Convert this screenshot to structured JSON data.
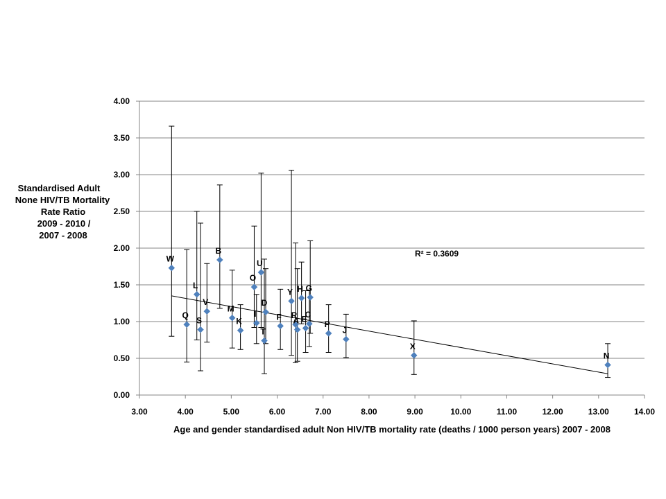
{
  "chart_data": {
    "type": "scatter",
    "title": "",
    "xlabel": "Age and gender standardised adult Non HIV/TB mortality rate  (deaths / 1000 person years)  2007 - 2008",
    "ylabel_lines": [
      "Standardised  Adult",
      "None HIV/TB Mortality",
      "Rate Ratio",
      "2009 - 2010 /",
      "2007 - 2008"
    ],
    "xlim": [
      3.0,
      14.0
    ],
    "ylim": [
      0.0,
      4.0
    ],
    "x_ticks": [
      "3.00",
      "4.00",
      "5.00",
      "6.00",
      "7.00",
      "8.00",
      "9.00",
      "10.00",
      "11.00",
      "12.00",
      "13.00",
      "14.00"
    ],
    "y_ticks": [
      "0.00",
      "0.50",
      "1.00",
      "1.50",
      "2.00",
      "2.50",
      "3.00",
      "3.50",
      "4.00"
    ],
    "grid": "horizontal",
    "marker_color": "#4F81BD",
    "r_squared_label": "R² = 0.3609",
    "trendline": {
      "x": [
        3.7,
        13.2
      ],
      "y": [
        1.35,
        0.29
      ]
    },
    "points": [
      {
        "label": "W",
        "x": 3.7,
        "y": 1.73,
        "lo": 0.8,
        "hi": 3.66
      },
      {
        "label": "Q",
        "x": 4.03,
        "y": 0.96,
        "lo": 0.45,
        "hi": 1.98
      },
      {
        "label": "L",
        "x": 4.25,
        "y": 1.37,
        "lo": 0.75,
        "hi": 2.5
      },
      {
        "label": "S",
        "x": 4.33,
        "y": 0.89,
        "lo": 0.33,
        "hi": 2.34
      },
      {
        "label": "V",
        "x": 4.47,
        "y": 1.14,
        "lo": 0.72,
        "hi": 1.79
      },
      {
        "label": "B",
        "x": 4.75,
        "y": 1.84,
        "lo": 1.18,
        "hi": 2.86
      },
      {
        "label": "M",
        "x": 5.02,
        "y": 1.05,
        "lo": 0.64,
        "hi": 1.7
      },
      {
        "label": "K",
        "x": 5.2,
        "y": 0.88,
        "lo": 0.62,
        "hi": 1.23
      },
      {
        "label": "O",
        "x": 5.5,
        "y": 1.47,
        "lo": 0.92,
        "hi": 2.3
      },
      {
        "label": "I",
        "x": 5.55,
        "y": 0.98,
        "lo": 0.7,
        "hi": 1.37
      },
      {
        "label": "U",
        "x": 5.65,
        "y": 1.67,
        "lo": 0.92,
        "hi": 3.02
      },
      {
        "label": "T",
        "x": 5.72,
        "y": 0.74,
        "lo": 0.29,
        "hi": 1.85
      },
      {
        "label": "D",
        "x": 5.75,
        "y": 1.13,
        "lo": 0.7,
        "hi": 1.72
      },
      {
        "label": "F",
        "x": 6.07,
        "y": 0.94,
        "lo": 0.62,
        "hi": 1.44
      },
      {
        "label": "Y",
        "x": 6.31,
        "y": 1.28,
        "lo": 0.54,
        "hi": 3.06
      },
      {
        "label": "R",
        "x": 6.4,
        "y": 0.96,
        "lo": 0.44,
        "hi": 2.07
      },
      {
        "label": "A",
        "x": 6.44,
        "y": 0.89,
        "lo": 0.46,
        "hi": 1.72
      },
      {
        "label": "H",
        "x": 6.53,
        "y": 1.32,
        "lo": 0.97,
        "hi": 1.81
      },
      {
        "label": "E",
        "x": 6.62,
        "y": 0.91,
        "lo": 0.58,
        "hi": 1.42
      },
      {
        "label": "G",
        "x": 6.72,
        "y": 1.33,
        "lo": 0.84,
        "hi": 2.1
      },
      {
        "label": "C",
        "x": 6.7,
        "y": 0.97,
        "lo": 0.66,
        "hi": 1.43
      },
      {
        "label": "P",
        "x": 7.12,
        "y": 0.84,
        "lo": 0.58,
        "hi": 1.23
      },
      {
        "label": "J",
        "x": 7.5,
        "y": 0.76,
        "lo": 0.51,
        "hi": 1.1
      },
      {
        "label": "X",
        "x": 8.98,
        "y": 0.54,
        "lo": 0.28,
        "hi": 1.01
      },
      {
        "label": "N",
        "x": 13.2,
        "y": 0.41,
        "lo": 0.24,
        "hi": 0.7
      }
    ]
  }
}
